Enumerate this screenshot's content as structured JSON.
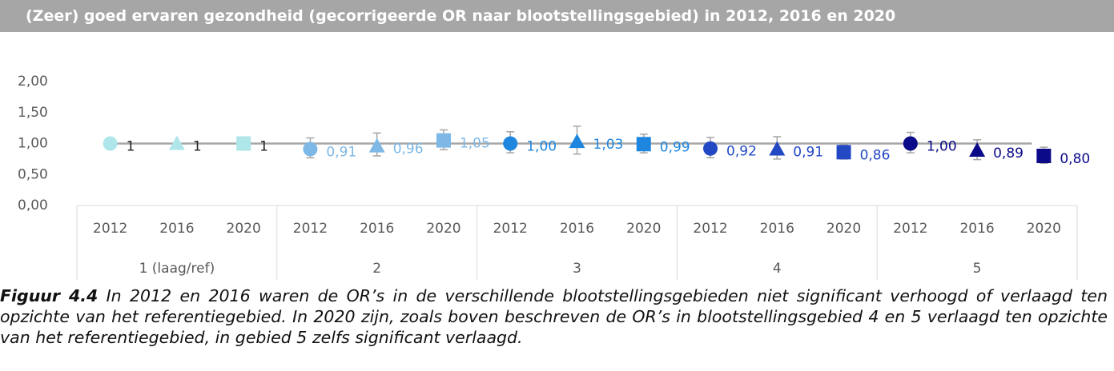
{
  "chart_data": {
    "type": "scatter",
    "title": "(Zeer) goed ervaren gezondheid (gecorrigeerde OR naar blootstellingsgebied) in 2012, 2016 en 2020",
    "categories": [
      "2012",
      "2016",
      "2020"
    ],
    "markers": [
      "circle",
      "triangle",
      "square"
    ],
    "reference_line": 1,
    "ylim": [
      0,
      2
    ],
    "yticks": [
      {
        "value": 0,
        "label": "0,00"
      },
      {
        "value": 0.5,
        "label": "0,50"
      },
      {
        "value": 1,
        "label": "1,00"
      },
      {
        "value": 1.5,
        "label": "1,50"
      },
      {
        "value": 2,
        "label": "2,00"
      }
    ],
    "series": [
      {
        "name": "1 (laag/ref)",
        "color": "#aee6ea",
        "label_color": "#222222",
        "values": [
          1,
          1,
          1
        ],
        "value_labels": [
          "1",
          "1",
          "1"
        ],
        "ci_low": [
          null,
          null,
          null
        ],
        "ci_high": [
          null,
          null,
          null
        ]
      },
      {
        "name": "2",
        "color": "#7db8e6",
        "label_color": "#7db8e6",
        "values": [
          0.91,
          0.96,
          1.05
        ],
        "value_labels": [
          "0,91",
          "0,96",
          "1,05"
        ],
        "ci_low": [
          0.77,
          0.8,
          0.9
        ],
        "ci_high": [
          1.09,
          1.17,
          1.22
        ]
      },
      {
        "name": "3",
        "color": "#1f86e0",
        "label_color": "#1f86e0",
        "values": [
          1.0,
          1.03,
          0.99
        ],
        "value_labels": [
          "1,00",
          "1,03",
          "0,99"
        ],
        "ci_low": [
          0.85,
          0.83,
          0.85
        ],
        "ci_high": [
          1.19,
          1.28,
          1.15
        ]
      },
      {
        "name": "4",
        "color": "#2248c4",
        "label_color": "#2248c4",
        "values": [
          0.92,
          0.91,
          0.86
        ],
        "value_labels": [
          "0,92",
          "0,91",
          "0,86"
        ],
        "ci_low": [
          0.77,
          0.75,
          0.75
        ],
        "ci_high": [
          1.1,
          1.11,
          0.98
        ]
      },
      {
        "name": "5",
        "color": "#0b0b8a",
        "label_color": "#0b0b8a",
        "values": [
          1.0,
          0.89,
          0.8
        ],
        "value_labels": [
          "1,00",
          "0,89",
          "0,80"
        ],
        "ci_low": [
          0.85,
          0.74,
          0.68
        ],
        "ci_high": [
          1.18,
          1.06,
          0.94
        ]
      }
    ]
  },
  "caption": {
    "label": "Figuur 4.4",
    "text": "In 2012 en 2016 waren de OR’s in de verschillende blootstellingsgebieden niet significant verhoogd of verlaagd ten opzichte van het referentiegebied. In 2020 zijn, zoals boven beschreven de OR’s in blootstellingsgebied 4 en 5 verlaagd ten opzichte van het referentiegebied, in gebied 5 zelfs significant verlaagd."
  }
}
